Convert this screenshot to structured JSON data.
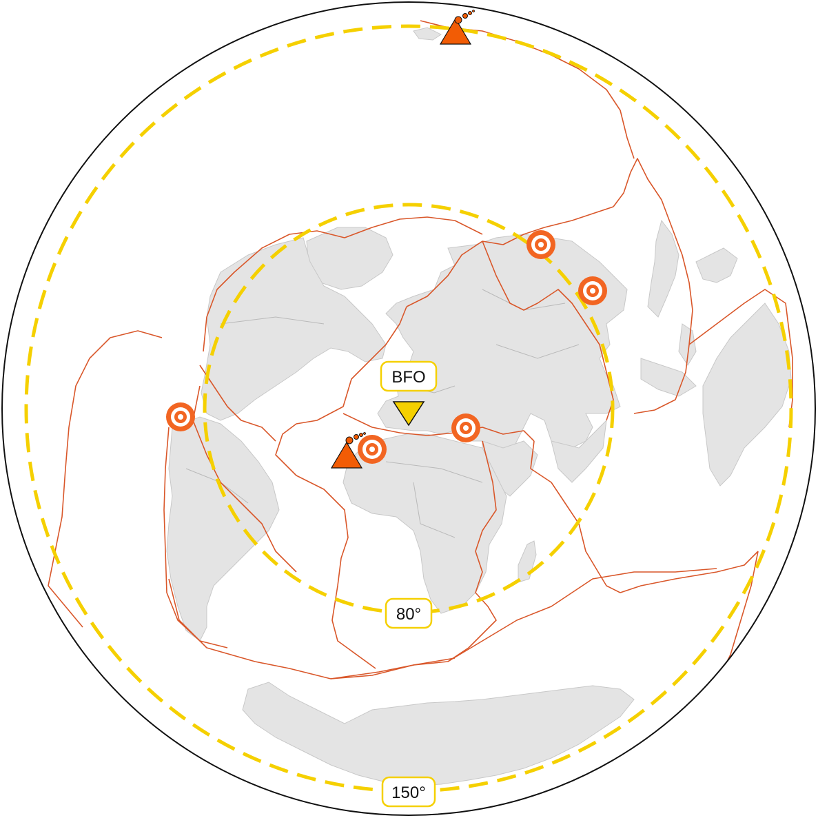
{
  "map": {
    "projection": "azimuthal-equidistant",
    "station": {
      "code": "BFO",
      "color": "#f5d000",
      "icon": "inverted-triangle-icon"
    },
    "distance_circles": [
      {
        "label": "80°",
        "color": "#f5d000"
      },
      {
        "label": "150°",
        "color": "#f5d000"
      }
    ],
    "colors": {
      "land": "#e4e4e4",
      "plate_boundaries": "#d9572a",
      "events": "#f26522",
      "volcano": "#f25c05"
    },
    "events": [
      {
        "name": "earthquake-colombia",
        "icon": "target-icon"
      },
      {
        "name": "earthquake-morocco",
        "icon": "target-icon"
      },
      {
        "name": "earthquake-turkey",
        "icon": "target-icon"
      },
      {
        "name": "earthquake-kamchatka-west",
        "icon": "target-icon"
      },
      {
        "name": "earthquake-japan",
        "icon": "target-icon"
      }
    ],
    "volcanoes": [
      {
        "name": "volcano-canary-islands",
        "icon": "volcano-triangle-icon"
      },
      {
        "name": "volcano-pacific",
        "icon": "volcano-triangle-icon"
      }
    ]
  }
}
